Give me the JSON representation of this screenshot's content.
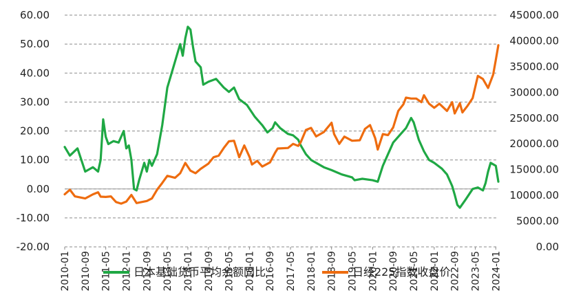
{
  "chart_data": {
    "type": "line",
    "title": "",
    "xlabel": "",
    "ylabel": "",
    "y_left": {
      "range": [
        -20,
        60
      ],
      "ticks": [
        "-20.00",
        "-10.00",
        "0.00",
        "10.00",
        "20.00",
        "30.00",
        "40.00",
        "50.00",
        "60.00"
      ]
    },
    "y_right": {
      "range": [
        0,
        45000
      ],
      "ticks": [
        "0.00",
        "5000.00",
        "10000.00",
        "15000.00",
        "20000.00",
        "25000.00",
        "30000.00",
        "35000.00",
        "40000.00",
        "45000.00"
      ]
    },
    "x_ticks": [
      "2010-01",
      "2010-09",
      "2011-05",
      "2012-01",
      "2012-09",
      "2013-05",
      "2014-01",
      "2014-09",
      "2015-05",
      "2016-01",
      "2016-09",
      "2017-05",
      "2018-01",
      "2018-09",
      "2019-05",
      "2020-01",
      "2020-09",
      "2021-05",
      "2022-01",
      "2022-09",
      "2023-05",
      "2024-01"
    ],
    "x_range": [
      "2010-01",
      "2024-02"
    ],
    "grid": "horizontal-dashed",
    "legend_position": "bottom",
    "series": [
      {
        "name": "日本基础货币平均余额同比",
        "axis": "left",
        "color": "#1fa844",
        "points": [
          [
            "2010-01",
            14.5
          ],
          [
            "2010-03",
            11.5
          ],
          [
            "2010-06",
            14.0
          ],
          [
            "2010-09",
            6.0
          ],
          [
            "2010-12",
            7.5
          ],
          [
            "2011-02",
            6.0
          ],
          [
            "2011-03",
            10.0
          ],
          [
            "2011-04",
            24.0
          ],
          [
            "2011-05",
            18.0
          ],
          [
            "2011-06",
            15.5
          ],
          [
            "2011-08",
            16.5
          ],
          [
            "2011-10",
            16.0
          ],
          [
            "2011-12",
            20.0
          ],
          [
            "2012-01",
            14.0
          ],
          [
            "2012-02",
            15.0
          ],
          [
            "2012-03",
            10.0
          ],
          [
            "2012-04",
            0.0
          ],
          [
            "2012-05",
            -0.5
          ],
          [
            "2012-06",
            3.0
          ],
          [
            "2012-08",
            9.0
          ],
          [
            "2012-09",
            6.0
          ],
          [
            "2012-10",
            10.0
          ],
          [
            "2012-11",
            8.0
          ],
          [
            "2013-01",
            12.0
          ],
          [
            "2013-03",
            22.0
          ],
          [
            "2013-05",
            35.0
          ],
          [
            "2013-07",
            41.0
          ],
          [
            "2013-09",
            47.0
          ],
          [
            "2013-10",
            50.0
          ],
          [
            "2013-11",
            46.0
          ],
          [
            "2013-12",
            52.0
          ],
          [
            "2014-01",
            56.0
          ],
          [
            "2014-02",
            55.0
          ],
          [
            "2014-03",
            49.0
          ],
          [
            "2014-04",
            44.0
          ],
          [
            "2014-06",
            42.0
          ],
          [
            "2014-07",
            36.0
          ],
          [
            "2014-09",
            37.0
          ],
          [
            "2014-12",
            38.0
          ],
          [
            "2015-03",
            35.0
          ],
          [
            "2015-05",
            33.5
          ],
          [
            "2015-07",
            35.0
          ],
          [
            "2015-09",
            31.0
          ],
          [
            "2015-12",
            29.0
          ],
          [
            "2016-03",
            25.0
          ],
          [
            "2016-06",
            22.0
          ],
          [
            "2016-08",
            19.5
          ],
          [
            "2016-10",
            21.0
          ],
          [
            "2016-11",
            23.0
          ],
          [
            "2017-01",
            21.0
          ],
          [
            "2017-04",
            19.0
          ],
          [
            "2017-06",
            18.5
          ],
          [
            "2017-08",
            17.0
          ],
          [
            "2017-09",
            15.0
          ],
          [
            "2017-11",
            12.0
          ],
          [
            "2018-01",
            10.0
          ],
          [
            "2018-06",
            7.5
          ],
          [
            "2018-09",
            6.5
          ],
          [
            "2019-01",
            5.0
          ],
          [
            "2019-05",
            4.0
          ],
          [
            "2019-06",
            3.0
          ],
          [
            "2019-09",
            3.5
          ],
          [
            "2020-01",
            3.0
          ],
          [
            "2020-03",
            2.5
          ],
          [
            "2020-05",
            8.0
          ],
          [
            "2020-07",
            12.0
          ],
          [
            "2020-09",
            16.0
          ],
          [
            "2020-12",
            19.0
          ],
          [
            "2021-02",
            21.0
          ],
          [
            "2021-04",
            24.5
          ],
          [
            "2021-05",
            23.0
          ],
          [
            "2021-07",
            17.0
          ],
          [
            "2021-09",
            13.0
          ],
          [
            "2021-11",
            10.0
          ],
          [
            "2022-01",
            9.0
          ],
          [
            "2022-04",
            7.0
          ],
          [
            "2022-06",
            5.0
          ],
          [
            "2022-08",
            1.0
          ],
          [
            "2022-09",
            -2.0
          ],
          [
            "2022-10",
            -5.5
          ],
          [
            "2022-11",
            -6.5
          ],
          [
            "2023-01",
            -4.0
          ],
          [
            "2023-04",
            0.0
          ],
          [
            "2023-06",
            0.5
          ],
          [
            "2023-08",
            -0.5
          ],
          [
            "2023-09",
            2.0
          ],
          [
            "2023-10",
            6.0
          ],
          [
            "2023-11",
            9.0
          ],
          [
            "2024-01",
            8.0
          ],
          [
            "2024-02",
            2.5
          ]
        ]
      },
      {
        "name": "日经225指数收盘价",
        "axis": "right",
        "color": "#ee6c0f",
        "points": [
          [
            "2010-01",
            10200
          ],
          [
            "2010-03",
            11100
          ],
          [
            "2010-05",
            9800
          ],
          [
            "2010-09",
            9400
          ],
          [
            "2010-12",
            10200
          ],
          [
            "2011-02",
            10600
          ],
          [
            "2011-03",
            9750
          ],
          [
            "2011-05",
            9700
          ],
          [
            "2011-07",
            9800
          ],
          [
            "2011-09",
            8700
          ],
          [
            "2011-11",
            8400
          ],
          [
            "2012-01",
            8800
          ],
          [
            "2012-03",
            10080
          ],
          [
            "2012-05",
            8500
          ],
          [
            "2012-07",
            8700
          ],
          [
            "2012-09",
            8900
          ],
          [
            "2012-11",
            9400
          ],
          [
            "2013-01",
            11100
          ],
          [
            "2013-03",
            12400
          ],
          [
            "2013-05",
            13800
          ],
          [
            "2013-08",
            13400
          ],
          [
            "2013-10",
            14300
          ],
          [
            "2013-12",
            16300
          ],
          [
            "2014-02",
            14800
          ],
          [
            "2014-04",
            14300
          ],
          [
            "2014-06",
            15160
          ],
          [
            "2014-09",
            16170
          ],
          [
            "2014-11",
            17400
          ],
          [
            "2015-01",
            17700
          ],
          [
            "2015-03",
            19200
          ],
          [
            "2015-05",
            20500
          ],
          [
            "2015-07",
            20600
          ],
          [
            "2015-09",
            17400
          ],
          [
            "2015-11",
            19700
          ],
          [
            "2016-01",
            17500
          ],
          [
            "2016-02",
            16000
          ],
          [
            "2016-04",
            16700
          ],
          [
            "2016-06",
            15600
          ],
          [
            "2016-09",
            16400
          ],
          [
            "2016-11",
            18300
          ],
          [
            "2016-12",
            19100
          ],
          [
            "2017-04",
            19200
          ],
          [
            "2017-06",
            20000
          ],
          [
            "2017-08",
            19600
          ],
          [
            "2017-09",
            20350
          ],
          [
            "2017-11",
            22700
          ],
          [
            "2018-01",
            23100
          ],
          [
            "2018-03",
            21450
          ],
          [
            "2018-06",
            22300
          ],
          [
            "2018-09",
            24100
          ],
          [
            "2018-10",
            21900
          ],
          [
            "2018-12",
            20000
          ],
          [
            "2019-02",
            21400
          ],
          [
            "2019-05",
            20600
          ],
          [
            "2019-08",
            20700
          ],
          [
            "2019-10",
            22900
          ],
          [
            "2019-12",
            23650
          ],
          [
            "2020-02",
            21100
          ],
          [
            "2020-03",
            18900
          ],
          [
            "2020-05",
            21900
          ],
          [
            "2020-07",
            21700
          ],
          [
            "2020-09",
            23200
          ],
          [
            "2020-11",
            26400
          ],
          [
            "2021-01",
            27700
          ],
          [
            "2021-02",
            28970
          ],
          [
            "2021-04",
            28800
          ],
          [
            "2021-06",
            28800
          ],
          [
            "2021-08",
            28100
          ],
          [
            "2021-09",
            29450
          ],
          [
            "2021-11",
            27800
          ],
          [
            "2022-01",
            27000
          ],
          [
            "2022-03",
            27800
          ],
          [
            "2022-06",
            26400
          ],
          [
            "2022-08",
            28100
          ],
          [
            "2022-09",
            25900
          ],
          [
            "2022-11",
            27900
          ],
          [
            "2022-12",
            26100
          ],
          [
            "2023-02",
            27400
          ],
          [
            "2023-04",
            28900
          ],
          [
            "2023-06",
            33200
          ],
          [
            "2023-08",
            32600
          ],
          [
            "2023-10",
            30860
          ],
          [
            "2023-12",
            33460
          ],
          [
            "2024-01",
            36300
          ],
          [
            "2024-02",
            39170
          ]
        ]
      }
    ]
  }
}
